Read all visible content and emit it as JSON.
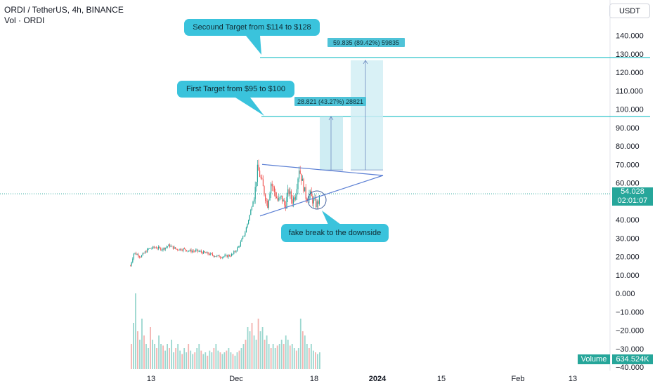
{
  "header": {
    "symbol_line": "ORDI / TetherUS, 4h, BINANCE",
    "volume_line": "Vol · ORDI"
  },
  "currency_button": "USDT",
  "price_label": {
    "price": "54.028",
    "countdown": "02:01:07"
  },
  "volume_badge": {
    "label": "Volume",
    "value": "634.524K"
  },
  "callouts": {
    "second_target": "Secound Target from $114 to $128",
    "first_target": "First Target from $95 to $100",
    "fake_break": "fake break to the downside"
  },
  "measure_labels": {
    "first": "28.821 (43.27%) 28821",
    "second": "59.835 (89.42%) 59835"
  },
  "colors": {
    "up": "#26a69a",
    "down": "#ef5350",
    "line": "#2ec4c9",
    "triangle": "#5b7fd4",
    "callout": "#3ac3dc"
  },
  "chart_data": {
    "type": "candlestick",
    "symbol": "ORDI / TetherUS",
    "interval": "4h",
    "exchange": "BINANCE",
    "y_ticks": [
      "140.000",
      "130.000",
      "120.000",
      "110.000",
      "100.000",
      "90.000",
      "80.000",
      "70.000",
      "60.000",
      "50.000",
      "40.000",
      "30.000",
      "20.000",
      "10.000",
      "0.000",
      "−10.000",
      "−20.000",
      "−30.000",
      "−40.000"
    ],
    "y_tick_values": [
      140,
      130,
      120,
      110,
      100,
      90,
      80,
      70,
      60,
      50,
      40,
      30,
      20,
      10,
      0,
      -10,
      -20,
      -30,
      -40
    ],
    "ylim": [
      -40,
      140
    ],
    "x_ticks": [
      {
        "label": "13",
        "bold": false,
        "pos": 215
      },
      {
        "label": "Dec",
        "bold": false,
        "pos": 336
      },
      {
        "label": "18",
        "bold": false,
        "pos": 447
      },
      {
        "label": "2024",
        "bold": true,
        "pos": 537
      },
      {
        "label": "15",
        "bold": false,
        "pos": 628
      },
      {
        "label": "Feb",
        "bold": false,
        "pos": 737
      },
      {
        "label": "13",
        "bold": false,
        "pos": 815
      }
    ],
    "last_price": 54.028,
    "anchor_points": [
      [
        185,
        15
      ],
      [
        190,
        22
      ],
      [
        200,
        20
      ],
      [
        210,
        24
      ],
      [
        220,
        25
      ],
      [
        230,
        24
      ],
      [
        240,
        26
      ],
      [
        250,
        24
      ],
      [
        260,
        24
      ],
      [
        270,
        23
      ],
      [
        280,
        23
      ],
      [
        290,
        22
      ],
      [
        300,
        21
      ],
      [
        310,
        20
      ],
      [
        320,
        20
      ],
      [
        330,
        21
      ],
      [
        340,
        26
      ],
      [
        348,
        33
      ],
      [
        355,
        43
      ],
      [
        362,
        55
      ],
      [
        366,
        68
      ],
      [
        370,
        63
      ],
      [
        374,
        57
      ],
      [
        380,
        48
      ],
      [
        385,
        60
      ],
      [
        390,
        55
      ],
      [
        395,
        50
      ],
      [
        400,
        52
      ],
      [
        405,
        47
      ],
      [
        410,
        56
      ],
      [
        415,
        50
      ],
      [
        420,
        54
      ],
      [
        425,
        68
      ],
      [
        430,
        60
      ],
      [
        435,
        52
      ],
      [
        440,
        54
      ],
      [
        445,
        50
      ],
      [
        450,
        48
      ],
      [
        455,
        52
      ]
    ],
    "volume_heights": [
      0.3,
      0.55,
      0.9,
      0.45,
      0.35,
      0.6,
      0.4,
      0.3,
      0.25,
      0.5,
      0.35,
      0.3,
      0.25,
      0.4,
      0.3,
      0.28,
      0.22,
      0.3,
      0.25,
      0.35,
      0.2,
      0.25,
      0.3,
      0.22,
      0.18,
      0.25,
      0.2,
      0.3,
      0.22,
      0.18,
      0.2,
      0.25,
      0.3,
      0.22,
      0.18,
      0.2,
      0.16,
      0.22,
      0.2,
      0.25,
      0.3,
      0.22,
      0.2,
      0.18,
      0.2,
      0.22,
      0.25,
      0.2,
      0.18,
      0.16,
      0.2,
      0.22,
      0.25,
      0.3,
      0.35,
      0.5,
      0.45,
      0.55,
      0.4,
      0.35,
      0.6,
      0.45,
      0.5,
      0.35,
      0.4,
      0.3,
      0.25,
      0.3,
      0.25,
      0.28,
      0.3,
      0.35,
      0.3,
      0.4,
      0.35,
      0.28,
      0.3,
      0.25,
      0.22,
      0.25,
      0.6,
      0.45,
      0.4,
      0.3,
      0.25,
      0.3,
      0.22,
      0.2,
      0.18,
      0.2
    ],
    "targets": [
      {
        "name": "Secound Target",
        "price": 128
      },
      {
        "name": "First Target",
        "price": 96
      }
    ],
    "measures": [
      {
        "from": 67,
        "to": 96
      },
      {
        "from": 67,
        "to": 126.5
      }
    ],
    "triangle": {
      "upper": [
        [
          373,
          70
        ],
        [
          545,
          64
        ]
      ],
      "lower": [
        [
          370,
          42
        ],
        [
          545,
          64
        ]
      ]
    },
    "title": "",
    "xlabel": "",
    "ylabel": ""
  }
}
